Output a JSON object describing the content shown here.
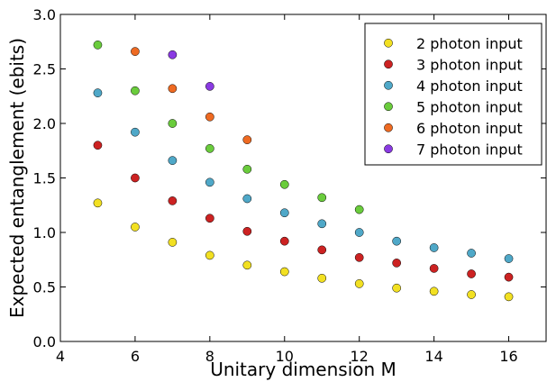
{
  "chart_data": {
    "type": "scatter",
    "title": "",
    "xlabel": "Unitary dimension M",
    "ylabel": "Expected entanglement (ebits)",
    "xlim": [
      4,
      17
    ],
    "ylim": [
      0.0,
      3.0
    ],
    "xticks": [
      4,
      6,
      8,
      10,
      12,
      14,
      16
    ],
    "yticks": [
      0.0,
      0.5,
      1.0,
      1.5,
      2.0,
      2.5,
      3.0
    ],
    "ytick_labels": [
      "0.0",
      "0.5",
      "1.0",
      "1.5",
      "2.0",
      "2.5",
      "3.0"
    ],
    "grid": false,
    "legend_position": "top-right",
    "series": [
      {
        "name": "2 photon input",
        "color": "#f2e022",
        "x": [
          5,
          6,
          7,
          8,
          9,
          10,
          11,
          12,
          13,
          14,
          15,
          16
        ],
        "y": [
          1.27,
          1.05,
          0.91,
          0.79,
          0.7,
          0.64,
          0.58,
          0.53,
          0.49,
          0.46,
          0.43,
          0.41
        ]
      },
      {
        "name": "3 photon input",
        "color": "#cc2222",
        "x": [
          5,
          6,
          7,
          8,
          9,
          10,
          11,
          12,
          13,
          14,
          15,
          16
        ],
        "y": [
          1.8,
          1.5,
          1.29,
          1.13,
          1.01,
          0.92,
          0.84,
          0.77,
          0.72,
          0.67,
          0.62,
          0.59
        ]
      },
      {
        "name": "4 photon input",
        "color": "#4fa8c8",
        "x": [
          5,
          6,
          7,
          8,
          9,
          10,
          11,
          12,
          13,
          14,
          15,
          16
        ],
        "y": [
          2.28,
          1.92,
          1.66,
          1.46,
          1.31,
          1.18,
          1.08,
          1.0,
          0.92,
          0.86,
          0.81,
          0.76
        ]
      },
      {
        "name": "5 photon input",
        "color": "#6acc3c",
        "x": [
          5,
          6,
          7,
          8,
          9,
          10,
          11,
          12
        ],
        "y": [
          2.72,
          2.3,
          2.0,
          1.77,
          1.58,
          1.44,
          1.32,
          1.21
        ]
      },
      {
        "name": "6 photon input",
        "color": "#ee6a22",
        "x": [
          6,
          7,
          8,
          9
        ],
        "y": [
          2.66,
          2.32,
          2.06,
          1.85
        ]
      },
      {
        "name": "7 photon input",
        "color": "#8a3ae2",
        "x": [
          7,
          8
        ],
        "y": [
          2.63,
          2.34
        ]
      }
    ]
  }
}
